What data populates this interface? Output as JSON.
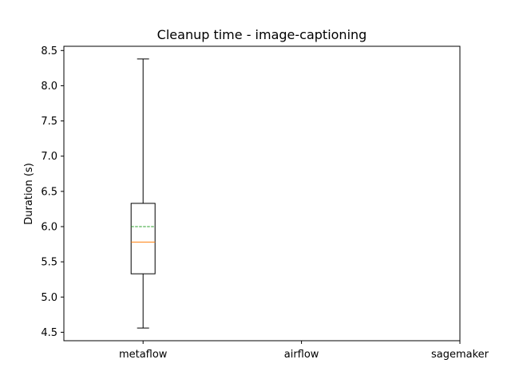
{
  "chart_data": {
    "type": "box",
    "title": "Cleanup time - image-captioning",
    "xlabel": "",
    "ylabel": "Duration (s)",
    "ylim": [
      4.38,
      8.56
    ],
    "yticks": [
      4.5,
      5.0,
      5.5,
      6.0,
      6.5,
      7.0,
      7.5,
      8.0,
      8.5
    ],
    "ytick_labels": [
      "4.5",
      "5.0",
      "5.5",
      "6.0",
      "6.5",
      "7.0",
      "7.5",
      "8.0",
      "8.5"
    ],
    "categories": [
      "metaflow",
      "airflow",
      "sagemaker"
    ],
    "boxes": [
      {
        "category": "metaflow",
        "whisker_low": 4.56,
        "q1": 5.33,
        "median": 5.78,
        "mean": 6.0,
        "q3": 6.33,
        "whisker_high": 8.38
      },
      {
        "category": "airflow"
      },
      {
        "category": "sagemaker"
      }
    ],
    "grid": false,
    "colors": {
      "box": "#000000",
      "median": "#ff7f0e",
      "mean": "#2ca02c"
    }
  }
}
